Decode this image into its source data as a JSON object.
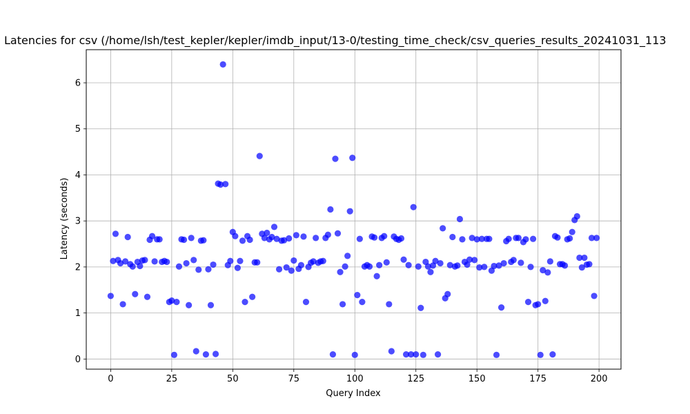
{
  "chart_data": {
    "type": "scatter",
    "title": "Latencies for csv (/home/lsh/test_kepler/kepler/imdb_input/13-0/testing_time_check/csv_queries_results_20241031_113",
    "xlabel": "Query Index",
    "ylabel": "Latency (seconds)",
    "xlim": [
      -10,
      209
    ],
    "ylim": [
      -0.22,
      6.72
    ],
    "xticks": [
      0,
      25,
      50,
      75,
      100,
      125,
      150,
      175,
      200
    ],
    "yticks": [
      0,
      1,
      2,
      3,
      4,
      5,
      6
    ],
    "grid": true,
    "marker_color": "#0000ff",
    "marker_alpha": 0.7,
    "series": [
      {
        "values": [
          1.37,
          2.13,
          2.72,
          2.15,
          2.08,
          1.19,
          2.12,
          2.65,
          2.06,
          2.01,
          1.41,
          2.11,
          2.02,
          2.14,
          2.15,
          1.35,
          2.59,
          2.67,
          2.12,
          2.6,
          2.6,
          2.11,
          2.13,
          2.11,
          1.24,
          1.27,
          0.09,
          1.24,
          2.01,
          2.6,
          2.59,
          2.08,
          1.17,
          2.63,
          2.15,
          0.17,
          1.94,
          2.57,
          2.58,
          0.1,
          1.95,
          1.17,
          2.05,
          0.11,
          3.81,
          3.79,
          6.4,
          3.8,
          2.04,
          2.13,
          2.76,
          2.67,
          1.98,
          2.13,
          2.57,
          1.24,
          2.67,
          2.59,
          1.35,
          2.1,
          2.1,
          4.41,
          2.72,
          2.63,
          2.74,
          2.6,
          2.65,
          2.87,
          2.61,
          1.95,
          2.57,
          2.58,
          1.99,
          2.62,
          1.92,
          2.14,
          2.69,
          1.96,
          2.04,
          2.66,
          1.24,
          2.0,
          2.09,
          2.12,
          2.63,
          2.09,
          2.12,
          2.13,
          2.63,
          2.7,
          3.25,
          0.1,
          4.35,
          2.73,
          1.89,
          1.19,
          2.01,
          2.24,
          3.21,
          4.37,
          0.09,
          1.39,
          2.61,
          1.24,
          2.01,
          2.04,
          2.01,
          2.66,
          2.64,
          1.8,
          2.04,
          2.63,
          2.67,
          2.1,
          1.19,
          0.17,
          2.66,
          2.61,
          2.59,
          2.62,
          2.16,
          0.1,
          2.04,
          0.1,
          3.3,
          0.1,
          2.01,
          1.11,
          0.09,
          2.11,
          2.01,
          1.89,
          2.03,
          2.13,
          0.1,
          2.08,
          2.84,
          1.32,
          1.41,
          2.04,
          2.65,
          2.01,
          2.03,
          3.04,
          2.6,
          2.11,
          2.05,
          2.16,
          2.63,
          2.15,
          2.6,
          1.99,
          2.61,
          2.0,
          2.61,
          2.61,
          1.92,
          2.02,
          0.09,
          2.03,
          1.12,
          2.08,
          2.56,
          2.61,
          2.11,
          2.15,
          2.63,
          2.63,
          2.09,
          2.54,
          2.6,
          1.24,
          2.0,
          2.61,
          1.17,
          1.19,
          0.09,
          1.93,
          1.26,
          1.88,
          2.12,
          0.1,
          2.67,
          2.64,
          2.06,
          2.06,
          2.03,
          2.6,
          2.62,
          2.76,
          3.02,
          3.1,
          2.2,
          1.99,
          2.2,
          2.05,
          2.06,
          2.63,
          1.37,
          2.63
        ]
      }
    ]
  }
}
